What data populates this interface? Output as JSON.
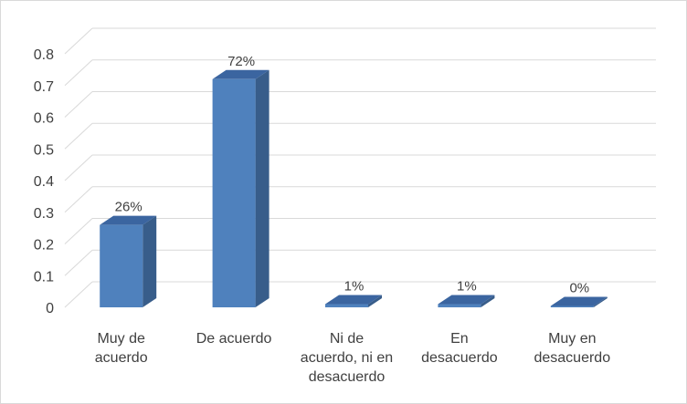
{
  "chart_data": {
    "type": "bar",
    "style": "3d-column",
    "categories": [
      [
        "Muy de",
        "acuerdo"
      ],
      [
        "De acuerdo"
      ],
      [
        "Ni de",
        "acuerdo, ni en",
        "desacuerdo"
      ],
      [
        "En",
        "desacuerdo"
      ],
      [
        "Muy en",
        "desacuerdo"
      ]
    ],
    "values": [
      0.26,
      0.72,
      0.01,
      0.01,
      0.0
    ],
    "data_labels": [
      "26%",
      "72%",
      "1%",
      "1%",
      "0%"
    ],
    "yticks": [
      "0",
      "0.1",
      "0.2",
      "0.3",
      "0.4",
      "0.5",
      "0.6",
      "0.7",
      "0.8"
    ],
    "ylim": [
      0,
      0.8
    ],
    "grid": true,
    "legend": "none",
    "colors": {
      "bar_front": "#4f81bd",
      "bar_side": "#385d8a",
      "bar_top": "#3b65a0",
      "grid": "#d9d9d9",
      "text": "#404040"
    }
  }
}
